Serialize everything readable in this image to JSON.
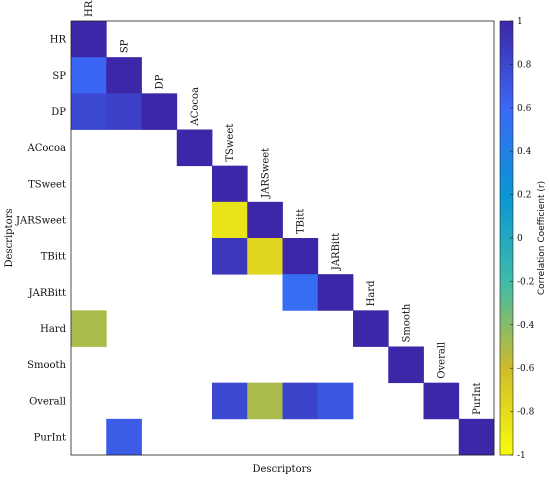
{
  "chart_data": {
    "type": "heatmap",
    "title": "",
    "xlabel": "Descriptors",
    "ylabel": "Descriptors",
    "descriptors": [
      "HR",
      "SP",
      "DP",
      "ACocoa",
      "TSweet",
      "JARSweet",
      "TBitt",
      "JARBitt",
      "Hard",
      "Smooth",
      "Overall",
      "PurInt"
    ],
    "cells": [
      {
        "row": "HR",
        "col": "HR",
        "r": 1.0
      },
      {
        "row": "SP",
        "col": "HR",
        "r": 0.62
      },
      {
        "row": "SP",
        "col": "SP",
        "r": 1.0
      },
      {
        "row": "DP",
        "col": "HR",
        "r": 0.78
      },
      {
        "row": "DP",
        "col": "SP",
        "r": 0.84
      },
      {
        "row": "DP",
        "col": "DP",
        "r": 1.0
      },
      {
        "row": "ACocoa",
        "col": "ACocoa",
        "r": 1.0
      },
      {
        "row": "TSweet",
        "col": "TSweet",
        "r": 1.0
      },
      {
        "row": "JARSweet",
        "col": "TSweet",
        "r": -0.85
      },
      {
        "row": "JARSweet",
        "col": "JARSweet",
        "r": 1.0
      },
      {
        "row": "TBitt",
        "col": "TSweet",
        "r": 0.9
      },
      {
        "row": "TBitt",
        "col": "JARSweet",
        "r": -0.76
      },
      {
        "row": "TBitt",
        "col": "TBitt",
        "r": 1.0
      },
      {
        "row": "JARBitt",
        "col": "TBitt",
        "r": 0.55
      },
      {
        "row": "JARBitt",
        "col": "JARBitt",
        "r": 1.0
      },
      {
        "row": "Hard",
        "col": "HR",
        "r": -0.5
      },
      {
        "row": "Hard",
        "col": "Hard",
        "r": 1.0
      },
      {
        "row": "Smooth",
        "col": "Smooth",
        "r": 1.0
      },
      {
        "row": "Overall",
        "col": "TSweet",
        "r": 0.78
      },
      {
        "row": "Overall",
        "col": "JARSweet",
        "r": -0.5
      },
      {
        "row": "Overall",
        "col": "TBitt",
        "r": 0.82
      },
      {
        "row": "Overall",
        "col": "JARBitt",
        "r": 0.7
      },
      {
        "row": "Overall",
        "col": "Overall",
        "r": 1.0
      },
      {
        "row": "PurInt",
        "col": "SP",
        "r": 0.68
      },
      {
        "row": "PurInt",
        "col": "PurInt",
        "r": 1.0
      }
    ],
    "colorbar": {
      "label": "Correlation Coefficient (r)",
      "range": [
        -1,
        1
      ],
      "ticks": [
        "1",
        "0.8",
        "0.6",
        "0.4",
        "0.2",
        "0",
        "-0.2",
        "-0.4",
        "-0.6",
        "-0.8",
        "-1"
      ],
      "colormap": "parula",
      "colors": [
        "#f9fb0e",
        "#cfbb2b",
        "#3ebbaa",
        "#0996d6",
        "#3b68f7",
        "#3e26a8"
      ]
    },
    "grid": false,
    "background_color": "#ffffff"
  }
}
